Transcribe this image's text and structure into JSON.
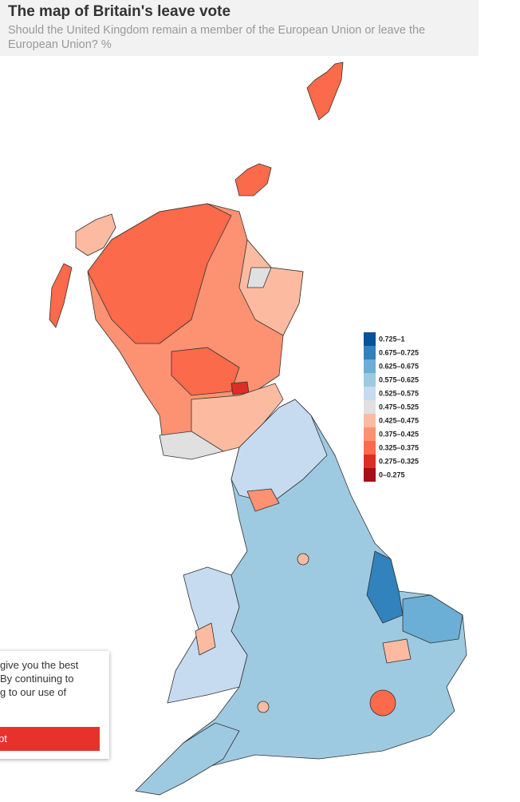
{
  "header": {
    "title": "The map of Britain's leave vote",
    "subtitle_lines": [
      "Should the United Kingdom remain a member of the European Union or leave the",
      "European Union? %"
    ]
  },
  "legend": [
    {
      "label": "0.725–1",
      "color": "#08519c"
    },
    {
      "label": "0.675–0.725",
      "color": "#3182bd"
    },
    {
      "label": "0.625–0.675",
      "color": "#6baed6"
    },
    {
      "label": "0.575–0.625",
      "color": "#9ecae1"
    },
    {
      "label": "0.525–0.575",
      "color": "#c6dbef"
    },
    {
      "label": "0.475–0.525",
      "color": "#e0e0e0"
    },
    {
      "label": "0.425–0.475",
      "color": "#fcbba1"
    },
    {
      "label": "0.375–0.425",
      "color": "#fc9272"
    },
    {
      "label": "0.325–0.375",
      "color": "#fb6a4a"
    },
    {
      "label": "0.275–0.325",
      "color": "#de2d26"
    },
    {
      "label": "0–0.275",
      "color": "#a50f15"
    }
  ],
  "cookie": {
    "lines": [
      "give you the best",
      "By continuing to",
      "g to our use of"
    ],
    "button": "pt"
  }
}
